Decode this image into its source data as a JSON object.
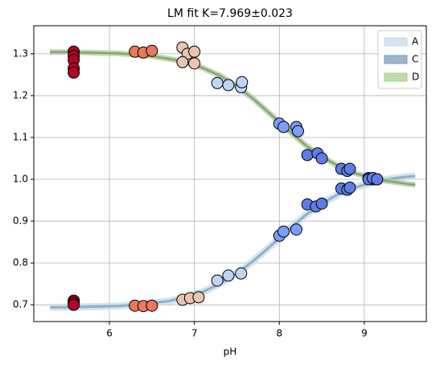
{
  "chart_data": {
    "type": "scatter",
    "title": "LM fit K=7.969±0.023",
    "xlabel": "pH",
    "xlim": [
      5.11,
      9.73
    ],
    "ylim": [
      0.66,
      1.367
    ],
    "xticks": [
      6,
      7,
      8,
      9
    ],
    "yticks": [
      0.7,
      0.8,
      0.9,
      {
        "value": 1,
        "label": "1.0"
      },
      1.1,
      1.2,
      1.3
    ],
    "grid": true,
    "legend": "upper right",
    "yerr": 0.012,
    "curve_x": [
      5.3,
      5.5,
      5.7,
      5.9,
      6.1,
      6.3,
      6.5,
      6.7,
      6.9,
      7.1,
      7.3,
      7.5,
      7.7,
      7.9,
      8.1,
      8.3,
      8.5,
      8.7,
      8.9,
      9.1,
      9.3,
      9.5,
      9.6
    ],
    "series": [
      {
        "name": "A",
        "color": "#c6dcec",
        "values": [
          0.694,
          0.694,
          0.695,
          0.696,
          0.697,
          0.7,
          0.704,
          0.709,
          0.718,
          0.731,
          0.75,
          0.775,
          0.806,
          0.841,
          0.878,
          0.913,
          0.942,
          0.965,
          0.981,
          0.993,
          1.001,
          1.006,
          1.008
        ]
      },
      {
        "name": "C",
        "color": "#7a9cbc",
        "values": [
          0.694,
          0.694,
          0.695,
          0.696,
          0.697,
          0.7,
          0.704,
          0.709,
          0.718,
          0.731,
          0.75,
          0.775,
          0.806,
          0.841,
          0.878,
          0.913,
          0.942,
          0.965,
          0.981,
          0.993,
          1.001,
          1.006,
          1.008
        ]
      },
      {
        "name": "D",
        "color": "#a9cf8e",
        "values": [
          1.304,
          1.304,
          1.303,
          1.302,
          1.301,
          1.298,
          1.294,
          1.288,
          1.28,
          1.266,
          1.248,
          1.223,
          1.191,
          1.155,
          1.118,
          1.083,
          1.054,
          1.031,
          1.014,
          1.002,
          0.995,
          0.989,
          0.987
        ]
      }
    ],
    "groups": [
      {
        "color": "#b40426",
        "x": [
          5.58,
          5.58,
          5.58,
          5.58,
          5.58,
          5.58,
          5.58,
          5.58
        ],
        "y": [
          1.305,
          1.295,
          1.285,
          1.265,
          1.255,
          0.71,
          0.705,
          0.7
        ]
      },
      {
        "color": "#e9785d",
        "x": [
          6.3,
          6.4,
          6.5,
          6.3,
          6.4,
          6.5
        ],
        "y": [
          1.305,
          1.303,
          1.307,
          0.698,
          0.697,
          0.698
        ]
      },
      {
        "color": "#e8c4b1",
        "x": [
          6.86,
          6.92,
          7.0,
          6.86,
          7.0,
          6.86,
          6.95,
          7.05
        ],
        "y": [
          1.315,
          1.3,
          1.305,
          1.28,
          1.277,
          0.712,
          0.716,
          0.718
        ]
      },
      {
        "color": "#c0d4f5",
        "x": [
          7.27,
          7.4,
          7.55,
          7.56,
          7.27,
          7.4,
          7.55
        ],
        "y": [
          1.23,
          1.225,
          1.22,
          1.232,
          0.758,
          0.77,
          0.775
        ]
      },
      {
        "color": "#7b9ff9",
        "x": [
          8.0,
          8.05,
          8.2,
          8.22,
          8.0,
          8.05,
          8.2
        ],
        "y": [
          1.133,
          1.125,
          1.125,
          1.115,
          0.865,
          0.875,
          0.88
        ]
      },
      {
        "color": "#5d7ce6",
        "x": [
          8.33,
          8.45,
          8.5,
          8.73,
          8.8,
          8.83,
          9.05,
          9.1,
          9.15,
          8.33,
          8.43,
          8.5,
          8.73,
          8.8,
          8.83,
          9.05,
          9.1,
          9.15
        ],
        "y": [
          1.058,
          1.062,
          1.05,
          1.025,
          1.02,
          1.025,
          1.003,
          1.0,
          1.0,
          0.94,
          0.935,
          0.942,
          0.978,
          0.975,
          0.98,
          1.0,
          1.003,
          1.0
        ]
      }
    ]
  }
}
